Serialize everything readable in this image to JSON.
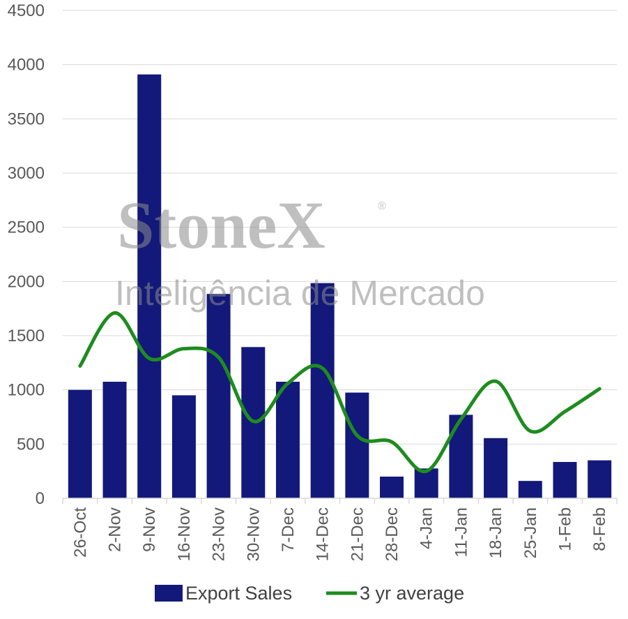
{
  "chart_data": {
    "type": "bar",
    "categories": [
      "26-Oct",
      "2-Nov",
      "9-Nov",
      "16-Nov",
      "23-Nov",
      "30-Nov",
      "7-Dec",
      "14-Dec",
      "21-Dec",
      "28-Dec",
      "4-Jan",
      "11-Jan",
      "18-Jan",
      "25-Jan",
      "1-Feb",
      "8-Feb"
    ],
    "series": [
      {
        "name": "Export Sales",
        "type": "bar",
        "color": "#13197a",
        "values": [
          1000,
          1075,
          3910,
          950,
          1885,
          1395,
          1075,
          1985,
          975,
          200,
          275,
          770,
          555,
          160,
          335,
          350
        ]
      },
      {
        "name": "3 yr average",
        "type": "line",
        "color": "#1e8c1e",
        "values": [
          1220,
          1710,
          1290,
          1380,
          1300,
          710,
          1060,
          1200,
          580,
          520,
          250,
          730,
          1080,
          620,
          800,
          1010
        ]
      }
    ],
    "ylim": [
      0,
      4500
    ],
    "yticks": [
      0,
      500,
      1000,
      1500,
      2000,
      2500,
      3000,
      3500,
      4000,
      4500
    ],
    "grid": true,
    "legend_position": "bottom"
  },
  "watermark": {
    "brand": "StoneX",
    "registered": "®",
    "tagline": "Inteligência de Mercado"
  }
}
